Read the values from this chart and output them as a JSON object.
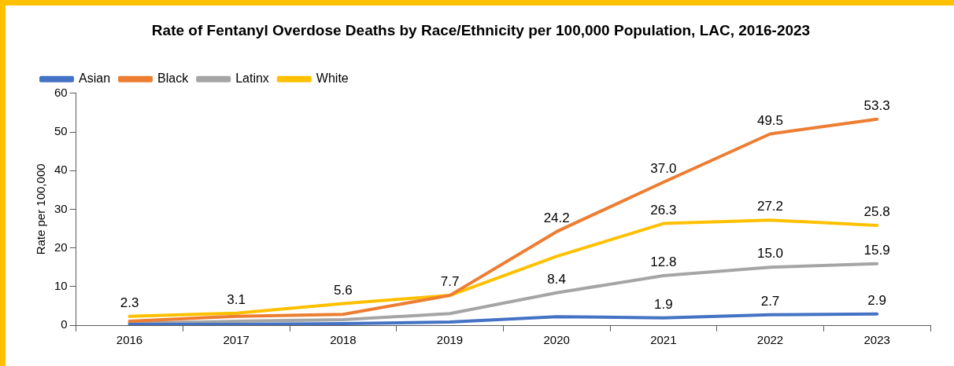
{
  "chart_data": {
    "type": "line",
    "title": "Rate of Fentanyl Overdose Deaths by Race/Ethnicity per 100,000 Population, LAC, 2016-2023",
    "ylabel": "Rate per 100,000",
    "categories": [
      "2016",
      "2017",
      "2018",
      "2019",
      "2020",
      "2021",
      "2022",
      "2023"
    ],
    "series": [
      {
        "name": "Asian",
        "color": "#4472c4",
        "values": [
          0.2,
          0.2,
          0.4,
          0.8,
          2.2,
          1.9,
          2.7,
          2.9
        ],
        "value_labels": [
          null,
          null,
          null,
          null,
          null,
          "1.9",
          "2.7",
          "2.9"
        ]
      },
      {
        "name": "Black",
        "color": "#ed7d31",
        "values": [
          1.0,
          2.3,
          2.8,
          7.7,
          24.2,
          37.0,
          49.5,
          53.3
        ],
        "value_labels": [
          null,
          null,
          null,
          null,
          "24.2",
          "37.0",
          "49.5",
          "53.3"
        ]
      },
      {
        "name": "Latinx",
        "color": "#a5a5a5",
        "values": [
          0.5,
          1.0,
          1.4,
          3.0,
          8.4,
          12.8,
          15.0,
          15.9
        ],
        "value_labels": [
          null,
          null,
          null,
          null,
          "8.4",
          "12.8",
          "15.0",
          "15.9"
        ]
      },
      {
        "name": "White",
        "color": "#ffc000",
        "values": [
          2.3,
          3.1,
          5.6,
          7.7,
          17.8,
          26.3,
          27.2,
          25.8
        ],
        "value_labels": [
          "2.3",
          "3.1",
          "5.6",
          "7.7",
          null,
          "26.3",
          "27.2",
          "25.8"
        ]
      }
    ],
    "ylim": [
      0,
      60
    ],
    "yticks": [
      0,
      10,
      20,
      30,
      40,
      50,
      60
    ],
    "grid": false,
    "legend": "top left",
    "marker": "none",
    "line_style": "solid"
  }
}
